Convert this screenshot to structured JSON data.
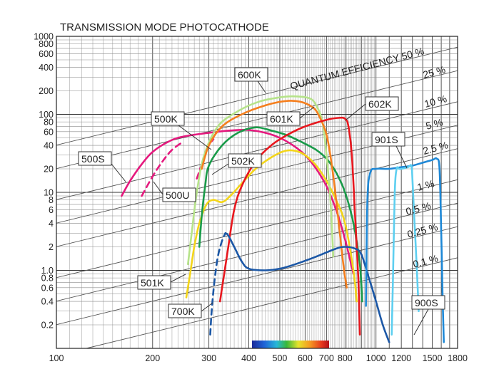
{
  "chart_data": {
    "type": "line",
    "title": "TRANSMISSION MODE PHOTOCATHODE",
    "xlabel": "",
    "ylabel": "",
    "x_scale": "log",
    "y_scale": "log",
    "xlim": [
      100,
      1800
    ],
    "ylim": [
      0.1,
      1000
    ],
    "grid": true,
    "x_ticks": [
      "100",
      "200",
      "300",
      "400",
      "500",
      "600",
      "700",
      "800",
      "1000",
      "1200",
      "1500",
      "1800"
    ],
    "y_ticks": [
      "1000",
      "800",
      "600",
      "400",
      "200",
      "100",
      "80",
      "60",
      "40",
      "20",
      "10",
      "8",
      "6",
      "4",
      "2",
      "1.0",
      "0.8",
      "0.6",
      "0.4",
      "0.2"
    ],
    "qe_lines": [
      {
        "label": "QUANTUM EFFICIENCY 50 %",
        "value": 50
      },
      {
        "label": "25 %",
        "value": 25
      },
      {
        "label": "10 %",
        "value": 10
      },
      {
        "label": "5 %",
        "value": 5
      },
      {
        "label": "2.5 %",
        "value": 2.5
      },
      {
        "label": "1 %",
        "value": 1
      },
      {
        "label": "0.5 %",
        "value": 0.5
      },
      {
        "label": "0.25 %",
        "value": 0.25
      },
      {
        "label": "0.1 %",
        "value": 0.1
      }
    ],
    "series": [
      {
        "name": "500S",
        "color": "#e5197e",
        "dash": false,
        "points": [
          [
            160,
            9
          ],
          [
            170,
            14
          ],
          [
            185,
            23
          ],
          [
            200,
            33
          ],
          [
            225,
            45
          ],
          [
            250,
            52
          ],
          [
            300,
            58
          ],
          [
            350,
            62
          ],
          [
            400,
            63
          ],
          [
            450,
            58
          ],
          [
            500,
            50
          ],
          [
            550,
            40
          ],
          [
            600,
            30
          ],
          [
            650,
            20
          ],
          [
            700,
            12
          ],
          [
            750,
            6
          ],
          [
            800,
            2.5
          ],
          [
            850,
            0.9
          ]
        ]
      },
      {
        "name": "500U",
        "color": "#e5197e",
        "dash": true,
        "points": [
          [
            185,
            9
          ],
          [
            200,
            16
          ],
          [
            215,
            25
          ],
          [
            230,
            35
          ],
          [
            250,
            45
          ]
        ]
      },
      {
        "name": "500K",
        "color": "#e5197e",
        "dash": true,
        "points": [
          [
            275,
            15
          ],
          [
            290,
            28
          ],
          [
            300,
            40
          ],
          [
            310,
            48
          ]
        ]
      },
      {
        "name": "501K",
        "color": "#f3d51a",
        "dash": false,
        "points": [
          [
            255,
            0.45
          ],
          [
            262,
            0.9
          ],
          [
            270,
            2
          ],
          [
            280,
            4
          ],
          [
            295,
            7
          ],
          [
            310,
            8
          ],
          [
            330,
            7.5
          ],
          [
            350,
            9
          ],
          [
            380,
            13
          ],
          [
            420,
            20
          ],
          [
            470,
            28
          ],
          [
            520,
            34
          ],
          [
            560,
            34
          ],
          [
            600,
            30
          ],
          [
            650,
            22
          ],
          [
            700,
            14
          ],
          [
            750,
            8
          ],
          [
            800,
            4
          ],
          [
            850,
            1
          ],
          [
            870,
            0.4
          ]
        ]
      },
      {
        "name": "502K",
        "color": "#1a9b4a",
        "dash": false,
        "points": [
          [
            280,
            2
          ],
          [
            285,
            5
          ],
          [
            292,
            12
          ],
          [
            300,
            22
          ],
          [
            330,
            40
          ],
          [
            370,
            58
          ],
          [
            420,
            68
          ],
          [
            470,
            62
          ],
          [
            520,
            55
          ],
          [
            580,
            45
          ],
          [
            650,
            35
          ],
          [
            700,
            27
          ],
          [
            750,
            18
          ],
          [
            800,
            10
          ],
          [
            850,
            4
          ],
          [
            890,
            1.2
          ],
          [
            905,
            0.4
          ]
        ]
      },
      {
        "name": "600K",
        "color": "#b6e38a",
        "dash": false,
        "points": [
          [
            258,
            1.2
          ],
          [
            265,
            3
          ],
          [
            275,
            10
          ],
          [
            290,
            30
          ],
          [
            320,
            70
          ],
          [
            370,
            110
          ],
          [
            430,
            145
          ],
          [
            500,
            165
          ],
          [
            560,
            170
          ],
          [
            620,
            160
          ],
          [
            650,
            130
          ],
          [
            680,
            80
          ],
          [
            700,
            30
          ],
          [
            720,
            8
          ],
          [
            735,
            1.5
          ]
        ]
      },
      {
        "name": "601K",
        "color": "#f57f1e",
        "dash": false,
        "points": [
          [
            285,
            20
          ],
          [
            300,
            40
          ],
          [
            330,
            70
          ],
          [
            380,
            100
          ],
          [
            450,
            130
          ],
          [
            520,
            148
          ],
          [
            580,
            145
          ],
          [
            630,
            125
          ],
          [
            660,
            100
          ],
          [
            700,
            55
          ],
          [
            730,
            20
          ],
          [
            760,
            5
          ],
          [
            790,
            1.2
          ],
          [
            810,
            0.6
          ]
        ]
      },
      {
        "name": "602K",
        "color": "#e8171e",
        "dash": false,
        "points": [
          [
            325,
            0.4
          ],
          [
            330,
            0.6
          ],
          [
            345,
            2
          ],
          [
            360,
            6
          ],
          [
            380,
            12
          ],
          [
            420,
            25
          ],
          [
            470,
            40
          ],
          [
            530,
            55
          ],
          [
            600,
            70
          ],
          [
            700,
            85
          ],
          [
            760,
            90
          ],
          [
            800,
            88
          ],
          [
            820,
            70
          ],
          [
            840,
            30
          ],
          [
            860,
            5
          ],
          [
            880,
            0.8
          ],
          [
            890,
            0.15
          ]
        ]
      },
      {
        "name": "700K",
        "color": "#1b57a6",
        "dash": true,
        "points": [
          [
            303,
            0.15
          ],
          [
            306,
            0.3
          ],
          [
            312,
            0.7
          ],
          [
            320,
            1.5
          ],
          [
            330,
            2.4
          ],
          [
            338,
            3
          ]
        ]
      },
      {
        "name": "700K",
        "color": "#1b57a6",
        "dash": false,
        "points": [
          [
            338,
            3
          ],
          [
            345,
            2.8
          ],
          [
            360,
            2
          ],
          [
            380,
            1.3
          ],
          [
            400,
            1.05
          ],
          [
            450,
            1
          ],
          [
            500,
            1.05
          ],
          [
            560,
            1.2
          ],
          [
            650,
            1.5
          ],
          [
            750,
            1.9
          ],
          [
            800,
            2
          ],
          [
            860,
            1.9
          ],
          [
            900,
            1.6
          ],
          [
            950,
            0.8
          ],
          [
            1000,
            0.4
          ],
          [
            1050,
            0.2
          ],
          [
            1100,
            0.12
          ]
        ]
      },
      {
        "name": "901S",
        "color": "#1e88d6",
        "dash": false,
        "points": [
          [
            930,
            0.35
          ],
          [
            940,
            8
          ],
          [
            960,
            18
          ],
          [
            1000,
            20
          ],
          [
            1100,
            20
          ],
          [
            1200,
            21
          ],
          [
            1300,
            22
          ],
          [
            1400,
            24
          ],
          [
            1500,
            26
          ],
          [
            1550,
            27
          ],
          [
            1580,
            20
          ],
          [
            1600,
            3
          ],
          [
            1615,
            0.5
          ],
          [
            1630,
            0.12
          ]
        ]
      },
      {
        "name": "900S",
        "color": "#5ecff0",
        "dash": false,
        "points": [
          [
            1120,
            0.15
          ],
          [
            1130,
            0.8
          ],
          [
            1145,
            10
          ],
          [
            1160,
            20
          ],
          [
            1180,
            20
          ],
          [
            1200,
            20
          ],
          [
            1260,
            21
          ],
          [
            1290,
            22
          ],
          [
            1300,
            15
          ],
          [
            1320,
            4
          ],
          [
            1340,
            1.2
          ],
          [
            1360,
            0.3
          ]
        ]
      }
    ],
    "labels": {
      "500S": "500S",
      "500U": "500U",
      "500K": "500K",
      "501K": "501K",
      "502K": "502K",
      "600K": "600K",
      "601K": "601K",
      "602K": "602K",
      "700K": "700K",
      "901S": "901S",
      "900S": "900S"
    },
    "spectrum_bar": true
  }
}
